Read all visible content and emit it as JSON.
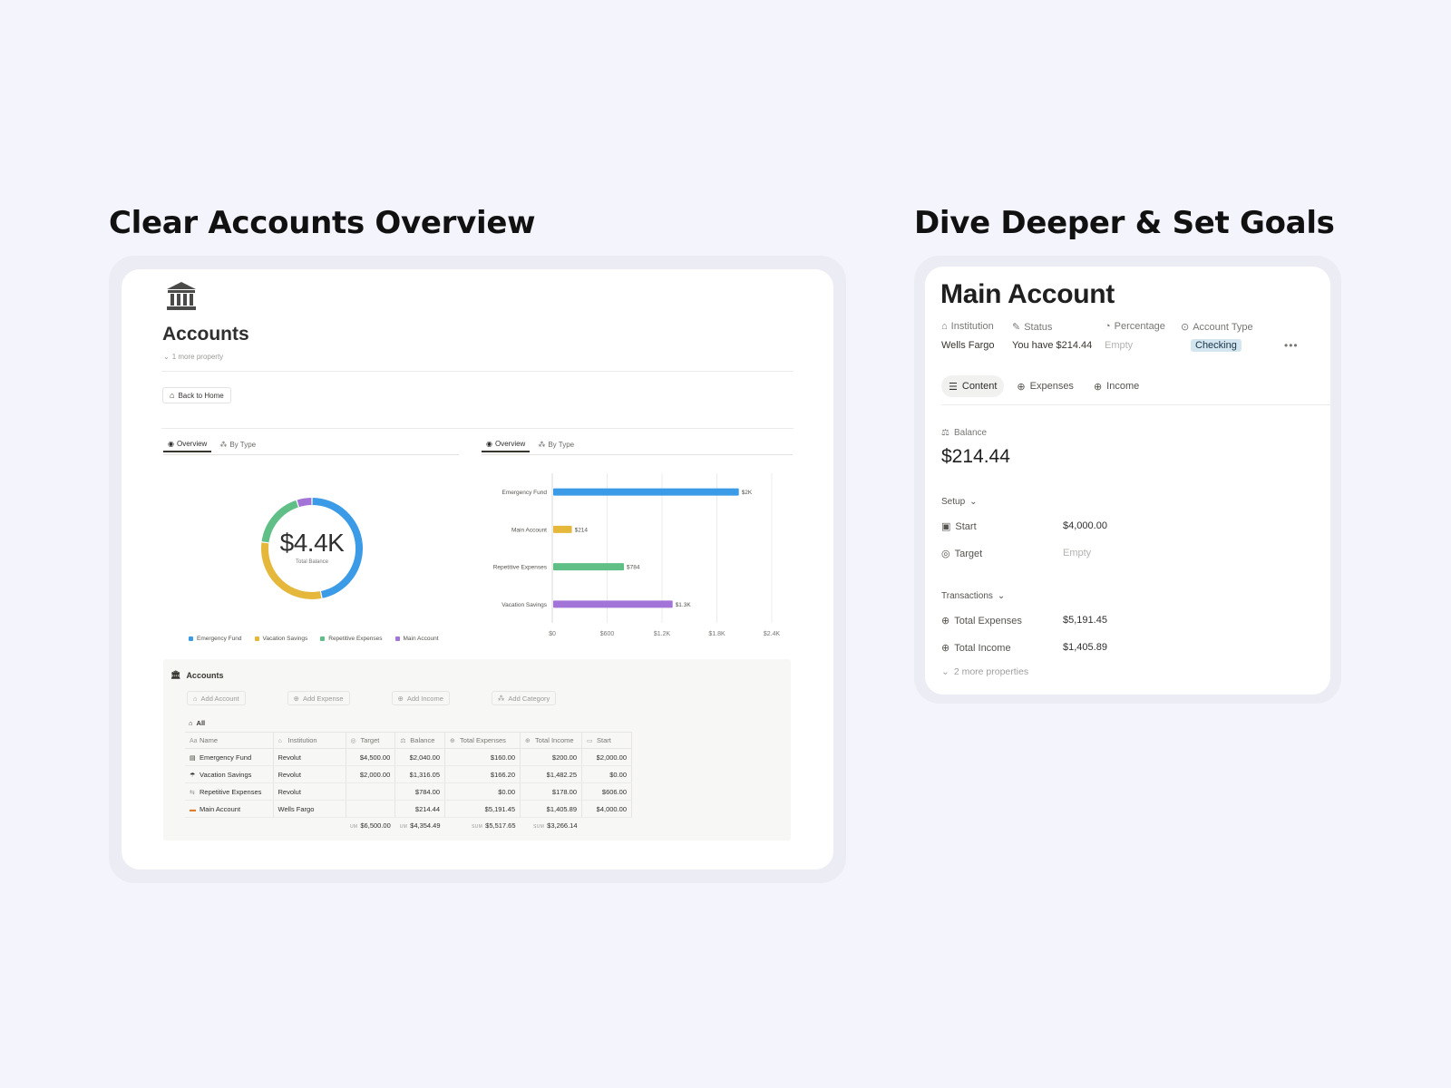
{
  "headings": {
    "left": "Clear Accounts Overview",
    "right": "Dive Deeper & Set Goals"
  },
  "accounts_page": {
    "title": "Accounts",
    "more_property": "1 more property",
    "back_button": "Back to Home",
    "left_tabs": [
      "Overview",
      "By Type"
    ],
    "right_tabs": [
      "Overview",
      "By Type"
    ],
    "donut_value": "$4.4K",
    "donut_label": "Total Balance",
    "legend": [
      {
        "label": "Emergency Fund",
        "color": "#3b9be6"
      },
      {
        "label": "Vacation Savings",
        "color": "#e5b73b"
      },
      {
        "label": "Repetitive Expenses",
        "color": "#5fbf87"
      },
      {
        "label": "Main Account",
        "color": "#a374d8"
      }
    ],
    "section_title": "Accounts",
    "action_buttons": [
      "Add Account",
      "Add Expense",
      "Add Income",
      "Add Category"
    ],
    "view_label": "All",
    "columns": [
      "Name",
      "Institution",
      "Target",
      "Balance",
      "Total Expenses",
      "Total Income",
      "Start"
    ],
    "rows": [
      {
        "name": "Emergency Fund",
        "institution": "Revolut",
        "target": "$4,500.00",
        "balance": "$2,040.00",
        "expenses": "$160.00",
        "income": "$200.00",
        "start": "$2,000.00"
      },
      {
        "name": "Vacation Savings",
        "institution": "Revolut",
        "target": "$2,000.00",
        "balance": "$1,316.05",
        "expenses": "$166.20",
        "income": "$1,482.25",
        "start": "$0.00"
      },
      {
        "name": "Repetitive Expenses",
        "institution": "Revolut",
        "target": "",
        "balance": "$784.00",
        "expenses": "$0.00",
        "income": "$178.00",
        "start": "$606.00"
      },
      {
        "name": "Main Account",
        "institution": "Wells Fargo",
        "target": "",
        "balance": "$214.44",
        "expenses": "$5,191.45",
        "income": "$1,405.89",
        "start": "$4,000.00"
      }
    ],
    "sums": {
      "target_label": "UM",
      "target": "$6,500.00",
      "balance_label": "UM",
      "balance": "$4,354.49",
      "expenses_label": "SUM",
      "expenses": "$5,517.65",
      "income_label": "SUM",
      "income": "$3,266.14"
    }
  },
  "chart_data": [
    {
      "type": "pie",
      "categories": [
        "Emergency Fund",
        "Vacation Savings",
        "Repetitive Expenses",
        "Main Account"
      ],
      "values": [
        2040.0,
        1316.05,
        784.0,
        214.44
      ],
      "colors": [
        "#3b9be6",
        "#e5b73b",
        "#5fbf87",
        "#a374d8"
      ]
    },
    {
      "type": "bar",
      "orientation": "horizontal",
      "categories": [
        "Emergency Fund",
        "Main Account",
        "Repetitive Expenses",
        "Vacation Savings"
      ],
      "values": [
        2040,
        214,
        784,
        1316
      ],
      "data_labels": [
        "$2K",
        "$214",
        "$784",
        "$1.3K"
      ],
      "colors": [
        "#3b9be6",
        "#e5b73b",
        "#5fbf87",
        "#a374d8"
      ],
      "xlim": [
        0,
        2400
      ],
      "x_ticks": [
        0,
        600,
        1200,
        1800,
        2400
      ],
      "x_tick_labels": [
        "$0",
        "$600",
        "$1.2K",
        "$1.8K",
        "$2.4K"
      ],
      "grid": true
    }
  ],
  "main_account": {
    "title": "Main Account",
    "prop_labels": {
      "institution": "Institution",
      "status": "Status",
      "percentage": "Percentage",
      "account_type": "Account Type"
    },
    "prop_values": {
      "institution": "Wells Fargo",
      "status": "You have $214.44",
      "percentage": "Empty",
      "account_type": "Checking"
    },
    "tabs": [
      "Content",
      "Expenses",
      "Income"
    ],
    "balance_label": "Balance",
    "balance_value": "$214.44",
    "setup_label": "Setup",
    "start_label": "Start",
    "start_value": "$4,000.00",
    "target_label": "Target",
    "target_value": "Empty",
    "transactions_label": "Transactions",
    "total_expenses_label": "Total Expenses",
    "total_expenses_value": "$5,191.45",
    "total_income_label": "Total Income",
    "total_income_value": "$1,405.89",
    "more_properties": "2 more properties"
  }
}
